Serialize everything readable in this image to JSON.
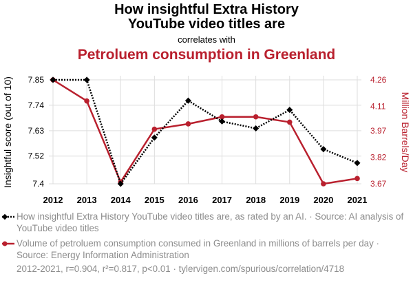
{
  "header": {
    "title_line1": "How insightful Extra History",
    "title_line2": "YouTube video titles are",
    "connector": "correlates with",
    "title2": "Petroluem consumption in Greenland"
  },
  "colors": {
    "series1": "#000000",
    "series2": "#b9202e",
    "grid": "#dddddd",
    "muted": "#8c8c8c"
  },
  "legend": {
    "item1": "How insightful Extra History YouTube video titles are, as rated by an AI. · Source: AI analysis of YouTube video titles",
    "item2": "Volume of petroluem consumption consumed in Greenland in millions of barrels per day · Source: Energy Information Administration"
  },
  "footer": "2012-2021, r=0.904, r²=0.817, p<0.01 · tylervigen.com/spurious/correlation/4718",
  "chart_data": {
    "type": "line",
    "x": [
      2012,
      2013,
      2014,
      2015,
      2016,
      2017,
      2018,
      2019,
      2020,
      2021
    ],
    "xtick_labels": [
      "2012",
      "2013",
      "2014",
      "2015",
      "2016",
      "2017",
      "2018",
      "2019",
      "2020",
      "2021"
    ],
    "series": [
      {
        "name": "How insightful Extra History YouTube video titles are",
        "axis": "left",
        "style": "dotted",
        "marker": "diamond",
        "values": [
          7.85,
          7.85,
          7.4,
          7.6,
          7.76,
          7.67,
          7.64,
          7.72,
          7.55,
          7.49
        ]
      },
      {
        "name": "Petroluem consumption in Greenland",
        "axis": "right",
        "style": "solid",
        "marker": "circle",
        "values": [
          4.26,
          4.14,
          3.68,
          3.98,
          4.01,
          4.05,
          4.05,
          4.02,
          3.67,
          3.7
        ]
      }
    ],
    "y_left": {
      "label": "Insightful score (out of 10)",
      "ticks": [
        7.4,
        7.52,
        7.63,
        7.74,
        7.85
      ],
      "tick_labels": [
        "7.4",
        "7.52",
        "7.63",
        "7.74",
        "7.85"
      ],
      "lim": [
        7.4,
        7.85
      ]
    },
    "y_right": {
      "label": "Million Barrels/Day",
      "ticks": [
        3.67,
        3.82,
        3.97,
        4.11,
        4.26
      ],
      "tick_labels": [
        "3.67",
        "3.82",
        "3.97",
        "4.11",
        "4.26"
      ],
      "lim": [
        3.67,
        4.26
      ]
    }
  }
}
